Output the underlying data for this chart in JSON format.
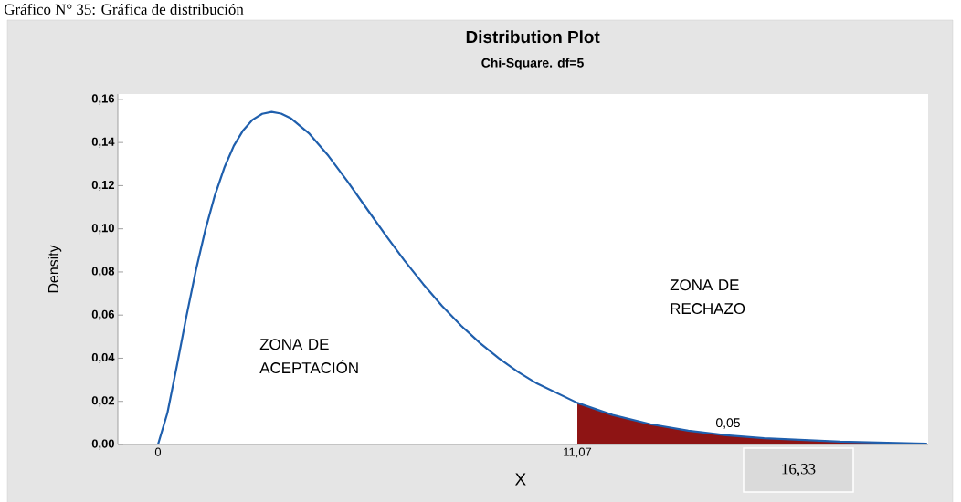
{
  "chart_data": {
    "type": "line",
    "title": "Distribution Plot",
    "subtitle": "Chi-Square. df=5",
    "xlabel": "X",
    "ylabel": "Density",
    "series": [
      {
        "type": "area",
        "color": "#8e1414",
        "x": [
          11.07,
          12,
          13,
          14,
          15,
          16,
          18,
          20,
          20.3
        ],
        "values": [
          0.0193,
          0.0137,
          0.0094,
          0.0064,
          0.0043,
          0.0029,
          0.0013,
          0.0005,
          0.0004
        ]
      },
      {
        "color": "#1f5fad",
        "x": [
          0,
          0.25,
          0.5,
          0.75,
          1,
          1.25,
          1.5,
          1.75,
          2,
          2.25,
          2.5,
          2.75,
          3,
          3.25,
          3.5,
          4,
          4.5,
          5,
          5.5,
          6,
          6.5,
          7,
          7.5,
          8,
          8.5,
          9,
          9.5,
          10,
          11.07,
          12,
          13,
          14,
          15,
          16,
          18,
          20,
          20.3
        ],
        "values": [
          0,
          0.0147,
          0.0366,
          0.0594,
          0.0807,
          0.0995,
          0.1154,
          0.1283,
          0.1384,
          0.1457,
          0.1506,
          0.1533,
          0.1542,
          0.1534,
          0.1513,
          0.144,
          0.1338,
          0.122,
          0.1096,
          0.0973,
          0.0854,
          0.0744,
          0.0642,
          0.0551,
          0.047,
          0.0399,
          0.0337,
          0.0283,
          0.0193,
          0.0137,
          0.0094,
          0.0064,
          0.0043,
          0.0029,
          0.0013,
          0.0005,
          0.0004
        ]
      }
    ],
    "xlim": [
      -1.06,
      20.33
    ],
    "ylim": [
      0,
      0.1625
    ],
    "xticks": [
      0,
      {
        "value": 11.07,
        "label": "11,07"
      }
    ],
    "yticks": [
      {
        "value": 0,
        "label": "0,00"
      },
      {
        "value": 0.02,
        "label": "0,02"
      },
      {
        "value": 0.04,
        "label": "0,04"
      },
      {
        "value": 0.06,
        "label": "0,06"
      },
      {
        "value": 0.08,
        "label": "0,08"
      },
      {
        "value": 0.1,
        "label": "0,10"
      },
      {
        "value": 0.12,
        "label": "0,12"
      },
      {
        "value": 0.14,
        "label": "0,14"
      },
      {
        "value": 0.16,
        "label": "0,16"
      }
    ],
    "annotations": [
      "Gráfico N° 35: Gráfica de distribución",
      "ZONA DE ACEPTACIÓN",
      "ZONA DE RECHAZO",
      "16,33",
      "0,05"
    ]
  }
}
